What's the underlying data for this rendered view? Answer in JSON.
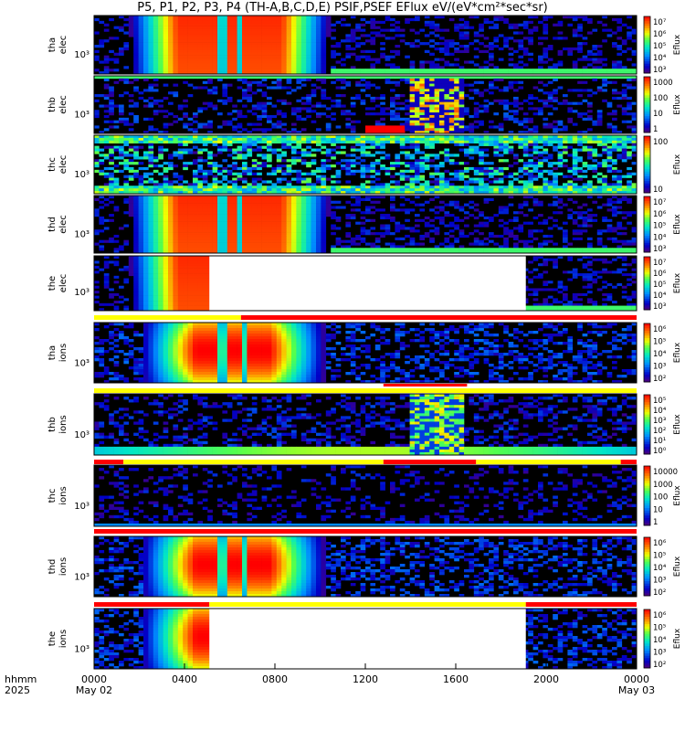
{
  "title": "P5, P1, P2, P3, P4 (TH-A,B,C,D,E) PSIF,PSEF EFlux eV/(eV*cm²*sec*sr)",
  "colors": {
    "bar_red": "#ff0000",
    "bar_yellow": "#ffff00",
    "background": "#000000"
  },
  "chart_data": {
    "type": "heatmap",
    "x_start_label": "hhmm",
    "x_year": "2025",
    "xlim": [
      0,
      24
    ],
    "x_ticks": [
      {
        "value": 0,
        "label": "0000",
        "date": "May 02"
      },
      {
        "value": 4,
        "label": "0400",
        "date": ""
      },
      {
        "value": 8,
        "label": "0800",
        "date": ""
      },
      {
        "value": 12,
        "label": "1200",
        "date": ""
      },
      {
        "value": 16,
        "label": "1600",
        "date": ""
      },
      {
        "value": 20,
        "label": "2000",
        "date": ""
      },
      {
        "value": 24,
        "label": "0000",
        "date": "May 03"
      }
    ],
    "panels": [
      {
        "probe": "tha",
        "species": "elec",
        "ylabel1": "tha",
        "ylabel2": "elec",
        "y_tick": "10³",
        "cbar_label": "Eflux",
        "cbar_ticks": [
          "10⁷",
          "10⁶",
          "10⁵",
          "10⁴",
          "10³"
        ],
        "profile": "plasmasphere",
        "gaps": []
      },
      {
        "probe": "thb",
        "species": "elec",
        "ylabel1": "thb",
        "ylabel2": "elec",
        "y_tick": "10³",
        "cbar_label": "Eflux",
        "cbar_ticks": [
          "1000",
          "100",
          "10",
          "1"
        ],
        "profile": "quiet_b",
        "gaps": []
      },
      {
        "probe": "thc",
        "species": "elec",
        "ylabel1": "thc",
        "ylabel2": "elec",
        "y_tick": "10³",
        "cbar_label": "Eflux",
        "cbar_ticks": [
          "100",
          "10"
        ],
        "profile": "noise",
        "gaps": []
      },
      {
        "probe": "thd",
        "species": "elec",
        "ylabel1": "thd",
        "ylabel2": "elec",
        "y_tick": "10³",
        "cbar_label": "Eflux",
        "cbar_ticks": [
          "10⁷",
          "10⁶",
          "10⁵",
          "10⁴",
          "10³"
        ],
        "profile": "plasmasphere",
        "gaps": []
      },
      {
        "probe": "the",
        "species": "elec",
        "ylabel1": "the",
        "ylabel2": "elec",
        "y_tick": "10³",
        "cbar_label": "Eflux",
        "cbar_ticks": [
          "10⁷",
          "10⁶",
          "10⁵",
          "10⁴",
          "10³"
        ],
        "profile": "plasmasphere",
        "gaps": [
          [
            5.1,
            19.1
          ]
        ]
      },
      {
        "probe": "tha",
        "species": "ions",
        "ylabel1": "tha",
        "ylabel2": "ions",
        "y_tick": "10³",
        "cbar_label": "Eflux",
        "cbar_ticks": [
          "10⁶",
          "10⁵",
          "10⁴",
          "10³",
          "10²"
        ],
        "profile": "ion_sphere",
        "gaps": []
      },
      {
        "probe": "thb",
        "species": "ions",
        "ylabel1": "thb",
        "ylabel2": "ions",
        "y_tick": "10³",
        "cbar_label": "Eflux",
        "cbar_ticks": [
          "10⁵",
          "10⁴",
          "10³",
          "10²",
          "10¹",
          "10⁰"
        ],
        "profile": "ion_b",
        "gaps": []
      },
      {
        "probe": "thc",
        "species": "ions",
        "ylabel1": "thc",
        "ylabel2": "ions",
        "y_tick": "10³",
        "cbar_label": "Eflux",
        "cbar_ticks": [
          "10000",
          "1000",
          "100",
          "10",
          "1"
        ],
        "profile": "ion_quiet",
        "gaps": []
      },
      {
        "probe": "thd",
        "species": "ions",
        "ylabel1": "thd",
        "ylabel2": "ions",
        "y_tick": "10³",
        "cbar_label": "Eflux",
        "cbar_ticks": [
          "10⁶",
          "10⁵",
          "10⁴",
          "10³",
          "10²"
        ],
        "profile": "ion_sphere",
        "gaps": []
      },
      {
        "probe": "the",
        "species": "ions",
        "ylabel1": "the",
        "ylabel2": "ions",
        "y_tick": "10³",
        "cbar_label": "Eflux",
        "cbar_ticks": [
          "10⁶",
          "10⁵",
          "10⁴",
          "10³",
          "10²"
        ],
        "profile": "ion_sphere",
        "gaps": [
          [
            5.1,
            19.1
          ]
        ]
      }
    ],
    "mode_bars": [
      {
        "after_panel": 4,
        "segments": [
          [
            0,
            6.5,
            "yellow"
          ],
          [
            6.5,
            24,
            "red"
          ]
        ]
      },
      {
        "after_panel": 5,
        "segments": [
          [
            0,
            24,
            "yellow"
          ]
        ],
        "upper": [
          [
            12.8,
            16.5,
            "red"
          ]
        ]
      },
      {
        "after_panel": 6,
        "segments": [
          [
            0,
            1.3,
            "red"
          ],
          [
            1.3,
            12.8,
            "yellow"
          ],
          [
            12.8,
            16.9,
            "red"
          ],
          [
            16.9,
            23.3,
            "yellow"
          ],
          [
            23.3,
            24,
            "red"
          ]
        ]
      },
      {
        "after_panel": 7,
        "segments": [
          [
            0,
            24,
            "red"
          ]
        ]
      },
      {
        "after_panel": 8,
        "segments": [
          [
            0,
            5.1,
            "red"
          ],
          [
            5.1,
            19.1,
            "yellow"
          ],
          [
            19.1,
            24,
            "red"
          ]
        ]
      }
    ]
  }
}
